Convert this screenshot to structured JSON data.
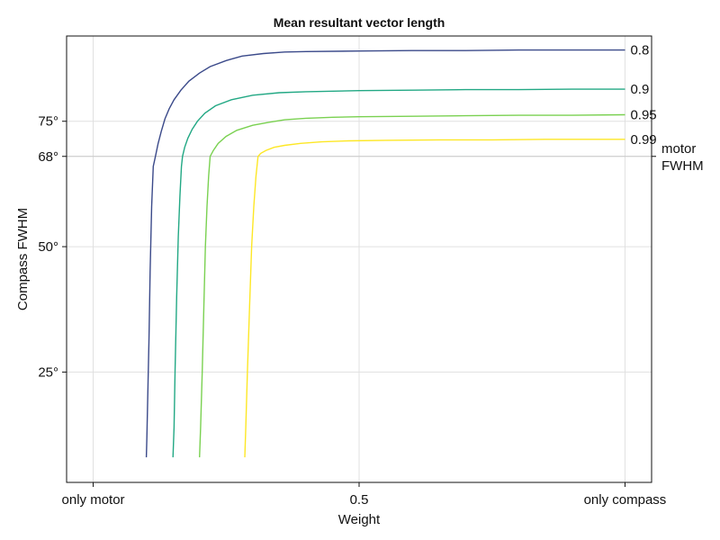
{
  "chart_data": {
    "type": "line",
    "title": "Mean resultant vector length",
    "xlabel": "Weight",
    "ylabel": "Compass FWHM",
    "xlim": [
      -0.05,
      1.05
    ],
    "ylim": [
      3,
      92
    ],
    "grid": true,
    "x_ticks": [
      {
        "value": 0,
        "label": "only motor"
      },
      {
        "value": 0.5,
        "label": "0.5"
      },
      {
        "value": 1,
        "label": "only compass"
      }
    ],
    "y_ticks": [
      {
        "value": 25,
        "label": "25°"
      },
      {
        "value": 50,
        "label": "50°"
      },
      {
        "value": 68,
        "label": "68°"
      },
      {
        "value": 75,
        "label": "75°"
      }
    ],
    "reference_line": {
      "value": 68,
      "label_line1": "motor",
      "label_line2": "FWHM"
    },
    "series": [
      {
        "name": "0.8",
        "color": "#3b4a8a",
        "x": [
          0.1,
          0.101,
          0.103,
          0.105,
          0.107,
          0.11,
          0.113,
          0.117,
          0.122,
          0.128,
          0.135,
          0.143,
          0.152,
          0.165,
          0.18,
          0.2,
          0.22,
          0.25,
          0.28,
          0.32,
          0.36,
          0.4,
          0.5,
          0.6,
          0.7,
          0.8,
          0.9,
          1.0
        ],
        "y": [
          8,
          12,
          22,
          32,
          45,
          58,
          66,
          68,
          70.5,
          73,
          75.5,
          77.5,
          79.3,
          81.2,
          83,
          84.6,
          85.9,
          87.1,
          88,
          88.5,
          88.8,
          88.9,
          89,
          89.1,
          89.1,
          89.2,
          89.2,
          89.2
        ]
      },
      {
        "name": "0.9",
        "color": "#22a884",
        "x": [
          0.15,
          0.152,
          0.154,
          0.157,
          0.16,
          0.163,
          0.166,
          0.168,
          0.172,
          0.178,
          0.186,
          0.196,
          0.21,
          0.23,
          0.26,
          0.3,
          0.35,
          0.4,
          0.5,
          0.6,
          0.7,
          0.8,
          0.9,
          1.0
        ],
        "y": [
          8,
          14,
          25,
          40,
          52,
          60,
          66,
          68,
          69.8,
          71.6,
          73.4,
          75,
          76.6,
          78.1,
          79.3,
          80.2,
          80.7,
          80.9,
          81.1,
          81.2,
          81.3,
          81.3,
          81.4,
          81.4
        ]
      },
      {
        "name": "0.95",
        "color": "#7ad151",
        "x": [
          0.2,
          0.202,
          0.205,
          0.208,
          0.211,
          0.214,
          0.217,
          0.22,
          0.226,
          0.235,
          0.25,
          0.27,
          0.3,
          0.33,
          0.36,
          0.4,
          0.45,
          0.5,
          0.6,
          0.7,
          0.8,
          0.9,
          1.0
        ],
        "y": [
          8,
          14,
          25,
          38,
          50,
          58,
          64,
          68,
          69.2,
          70.6,
          72,
          73.2,
          74.2,
          74.8,
          75.3,
          75.6,
          75.8,
          75.9,
          76,
          76.1,
          76.2,
          76.2,
          76.3
        ]
      },
      {
        "name": "0.99",
        "color": "#fde725",
        "x": [
          0.285,
          0.287,
          0.29,
          0.294,
          0.298,
          0.302,
          0.306,
          0.31,
          0.315,
          0.325,
          0.34,
          0.36,
          0.39,
          0.43,
          0.48,
          0.55,
          0.65,
          0.75,
          0.85,
          1.0
        ],
        "y": [
          8,
          14,
          25,
          38,
          50,
          58,
          64,
          68,
          68.6,
          69.2,
          69.8,
          70.2,
          70.6,
          70.9,
          71.1,
          71.2,
          71.3,
          71.3,
          71.4,
          71.4
        ]
      }
    ]
  }
}
